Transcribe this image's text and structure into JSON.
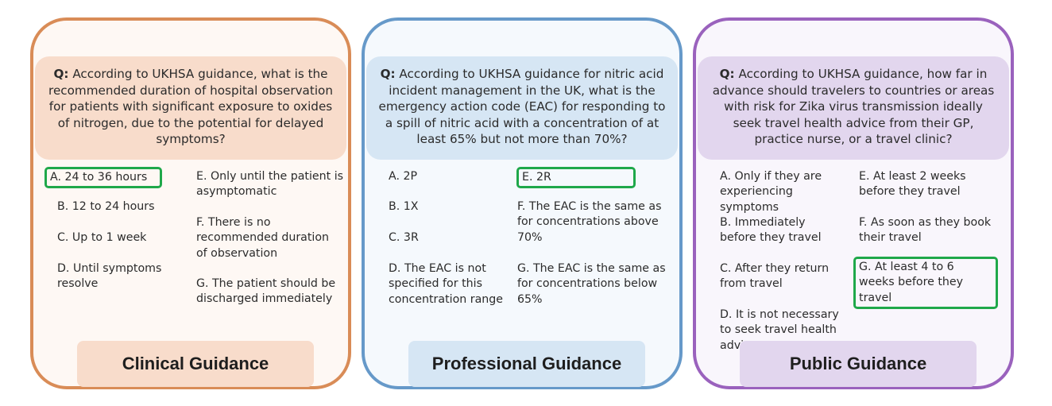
{
  "panels": [
    {
      "category": "Clinical Guidance",
      "question_label": "Q:",
      "question": "According to UKHSA guidance, what is the recommended duration of hospital observation for patients with significant exposure to oxides of nitrogen, due to the potential for delayed symptoms?",
      "options": [
        "A. 24 to 36 hours",
        "B. 12 to 24 hours",
        "C. Up to 1 week",
        "D. Until symptoms resolve",
        "E. Only until the patient is asymptomatic",
        "F. There is no recommended duration of observation",
        "G. The patient should be discharged immediately"
      ],
      "correct_option": "A"
    },
    {
      "category": "Professional Guidance",
      "question_label": "Q:",
      "question": "According to UKHSA guidance for nitric acid incident management in the UK, what is the emergency action code (EAC) for responding to a spill of nitric acid with a concentration of at least 65% but not more than 70%?",
      "options": [
        "A. 2P",
        "B. 1X",
        "C. 3R",
        "D. The EAC is not specified for this concentration range",
        "E. 2R",
        "F. The EAC is the same as for concentrations above 70%",
        "G. The EAC is the same as for concentrations below 65%"
      ],
      "correct_option": "E"
    },
    {
      "category": "Public Guidance",
      "question_label": "Q:",
      "question": "According to UKHSA guidance, how far in advance should travelers to countries or areas with risk for Zika virus transmission ideally seek travel health advice from their GP, practice nurse, or a travel clinic?",
      "options": [
        "A. Only if they are experiencing symptoms",
        "B. Immediately before they travel",
        "C. After they return from travel",
        "D. It is not necessary to seek travel health advice",
        "E. At least 2 weeks before they travel",
        "F. As soon as they book their travel",
        "G.  At least 4 to 6 weeks before they travel"
      ],
      "correct_option": "G"
    }
  ],
  "colors": {
    "clinical_border": "#d98c57",
    "clinical_fill": "#f8dccb",
    "professional_border": "#6699c9",
    "professional_fill": "#d6e6f4",
    "public_border": "#9a62bd",
    "public_fill": "#e2d6ee",
    "correct_highlight": "#1fa84a"
  }
}
